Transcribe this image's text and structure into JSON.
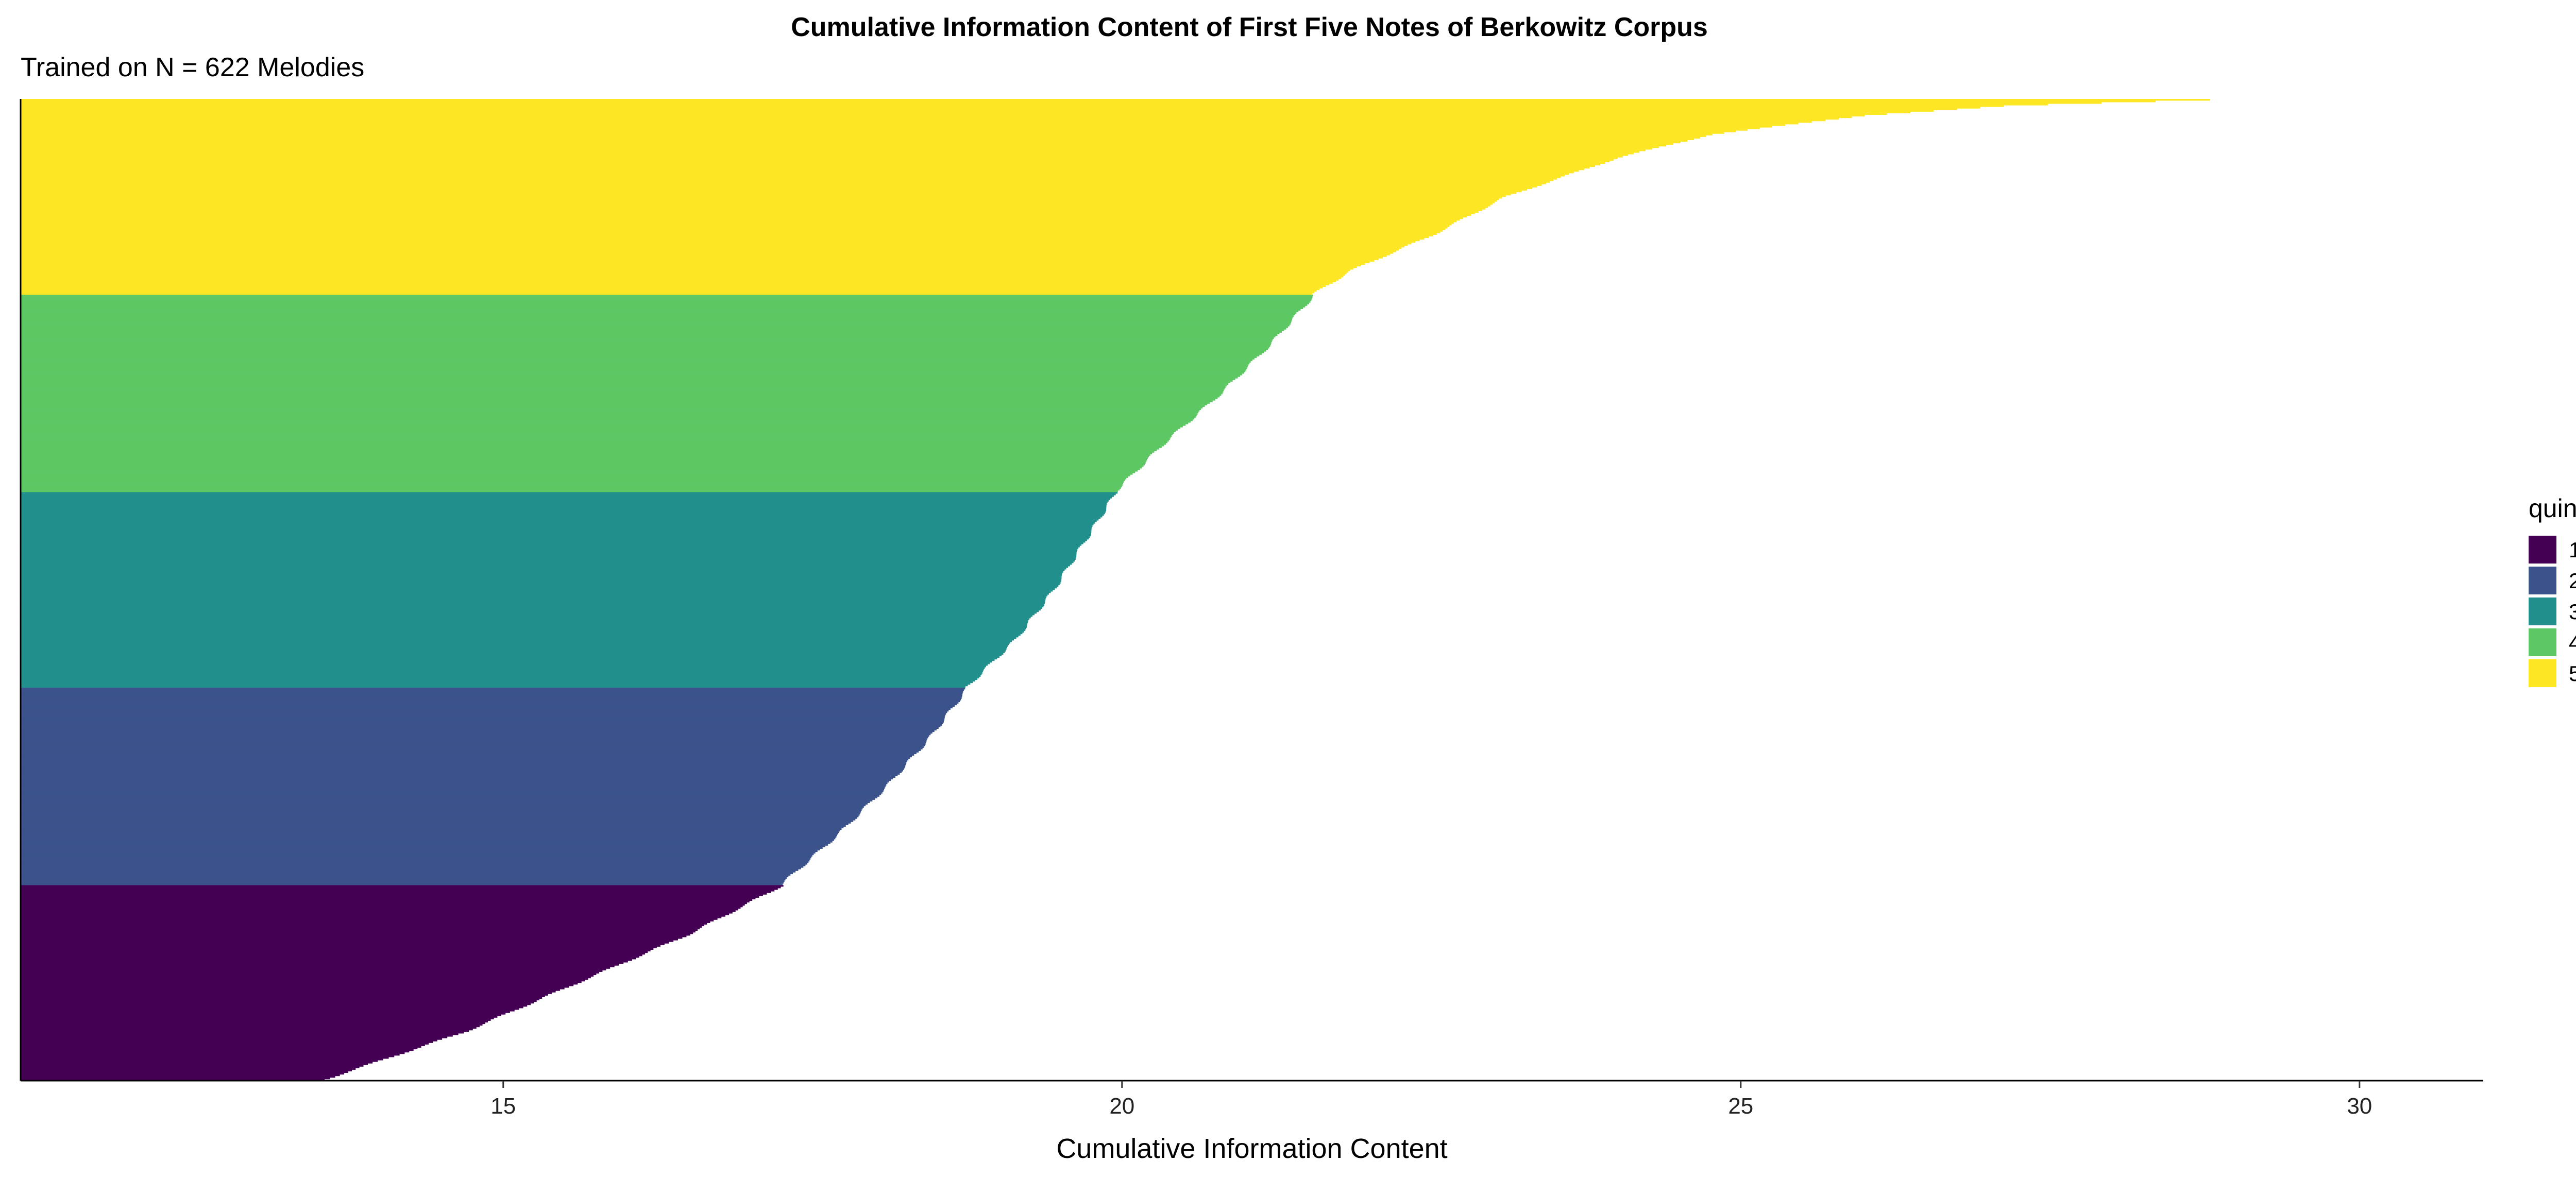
{
  "chart_data": {
    "type": "bar",
    "orientation": "horizontal",
    "title": "Cumulative Information Content of First Five Notes of Berkowitz Corpus",
    "subtitle": "Trained on N = 622 Melodies",
    "xlabel": "Cumulative Information Content",
    "ylabel": "",
    "xlim": [
      11.1,
      31
    ],
    "x_ticks": [
      15,
      20,
      25,
      30
    ],
    "x_tick_labels": [
      "15",
      "20",
      "25",
      "30"
    ],
    "n_bars": 622,
    "sorted": "descending from top to bottom",
    "grid": false,
    "legend": {
      "title": "quintile",
      "position": "right",
      "entries": [
        {
          "label": "1",
          "color": "#440154"
        },
        {
          "label": "2",
          "color": "#3B528B"
        },
        {
          "label": "3",
          "color": "#21908C"
        },
        {
          "label": "4",
          "color": "#5DC863"
        },
        {
          "label": "5",
          "color": "#FDE725"
        }
      ]
    },
    "series": [
      {
        "quintile": "1",
        "color": "#440154",
        "bars": 124,
        "value_range": [
          13.55,
          17.25
        ],
        "profile": [
          [
            0,
            13.55
          ],
          [
            0.25,
            14.7
          ],
          [
            0.5,
            15.6
          ],
          [
            0.75,
            16.5
          ],
          [
            1,
            17.25
          ]
        ]
      },
      {
        "quintile": "2",
        "color": "#3B528B",
        "bars": 125,
        "value_range": [
          17.25,
          18.75
        ],
        "profile": [
          [
            0,
            17.25
          ],
          [
            0.25,
            17.7
          ],
          [
            0.5,
            18.1
          ],
          [
            0.75,
            18.45
          ],
          [
            1,
            18.75
          ]
        ]
      },
      {
        "quintile": "3",
        "color": "#21908C",
        "bars": 124,
        "value_range": [
          18.75,
          19.95
        ],
        "profile": [
          [
            0,
            18.75
          ],
          [
            0.25,
            19.15
          ],
          [
            0.5,
            19.45
          ],
          [
            0.75,
            19.7
          ],
          [
            1,
            19.95
          ]
        ]
      },
      {
        "quintile": "4",
        "color": "#5DC863",
        "bars": 125,
        "value_range": [
          19.95,
          21.55
        ],
        "profile": [
          [
            0,
            19.95
          ],
          [
            0.25,
            20.35
          ],
          [
            0.5,
            20.8
          ],
          [
            0.75,
            21.2
          ],
          [
            1,
            21.55
          ]
        ]
      },
      {
        "quintile": "5",
        "color": "#FDE725",
        "bars": 124,
        "value_range": [
          21.55,
          28.8
        ],
        "profile": [
          [
            0,
            21.55
          ],
          [
            0.12,
            21.85
          ],
          [
            0.3,
            22.5
          ],
          [
            0.5,
            23.1
          ],
          [
            0.7,
            24
          ],
          [
            0.82,
            24.75
          ],
          [
            0.92,
            26
          ],
          [
            0.97,
            27.2
          ],
          [
            1,
            28.8
          ]
        ]
      }
    ]
  }
}
